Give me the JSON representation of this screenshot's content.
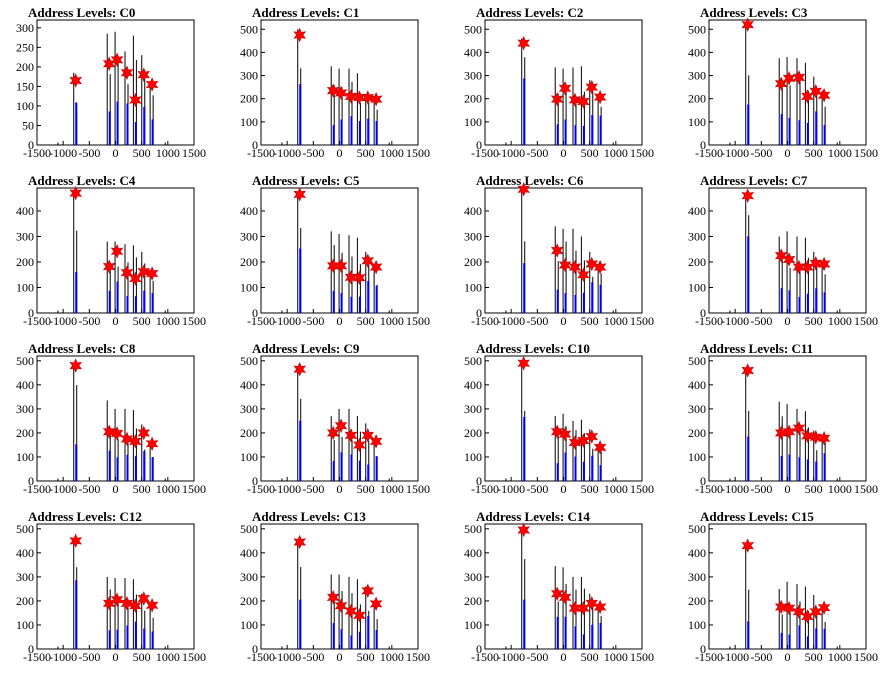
{
  "page": {
    "background": "#ffffff",
    "colors": {
      "axis": "#000000",
      "histogram": "#000000",
      "peak_bars": "#0000ff",
      "marker": "#ff0000",
      "marker_edge": "#cc0000"
    }
  },
  "chart_data": [
    {
      "type": "bar",
      "title": "Address Levels: C0",
      "xlim": [
        -1500,
        1500
      ],
      "ylim": [
        0,
        320
      ],
      "yticks": [
        0,
        50,
        100,
        150,
        200,
        250,
        300
      ],
      "xticks": [
        -1500,
        -1000,
        -500,
        0,
        500,
        1000,
        1500
      ],
      "peaks": [
        {
          "x": -760,
          "y": 165,
          "h": 185
        },
        {
          "x": -120,
          "y": 208,
          "h": 285
        },
        {
          "x": 30,
          "y": 218,
          "h": 290
        },
        {
          "x": 220,
          "y": 185,
          "h": 240
        },
        {
          "x": 380,
          "y": 115,
          "h": 280
        },
        {
          "x": 540,
          "y": 180,
          "h": 230
        },
        {
          "x": 700,
          "y": 155,
          "h": 160
        }
      ]
    },
    {
      "type": "bar",
      "title": "Address Levels: C1",
      "xlim": [
        -1500,
        1500
      ],
      "ylim": [
        0,
        540
      ],
      "yticks": [
        0,
        100,
        200,
        300,
        400,
        500
      ],
      "xticks": [
        -1500,
        -1000,
        -500,
        0,
        500,
        1000,
        1500
      ],
      "peaks": [
        {
          "x": -760,
          "y": 475,
          "h": 500
        },
        {
          "x": -120,
          "y": 235,
          "h": 340
        },
        {
          "x": 30,
          "y": 225,
          "h": 330
        },
        {
          "x": 220,
          "y": 210,
          "h": 330
        },
        {
          "x": 380,
          "y": 205,
          "h": 310
        },
        {
          "x": 540,
          "y": 205,
          "h": 220
        },
        {
          "x": 700,
          "y": 198,
          "h": 205
        }
      ]
    },
    {
      "type": "bar",
      "title": "Address Levels: C2",
      "xlim": [
        -1500,
        1500
      ],
      "ylim": [
        0,
        540
      ],
      "yticks": [
        0,
        100,
        200,
        300,
        400,
        500
      ],
      "xticks": [
        -1500,
        -1000,
        -500,
        0,
        500,
        1000,
        1500
      ],
      "peaks": [
        {
          "x": -760,
          "y": 440,
          "h": 460
        },
        {
          "x": -120,
          "y": 198,
          "h": 335
        },
        {
          "x": 30,
          "y": 245,
          "h": 330
        },
        {
          "x": 220,
          "y": 195,
          "h": 335
        },
        {
          "x": 380,
          "y": 188,
          "h": 340
        },
        {
          "x": 540,
          "y": 250,
          "h": 280
        },
        {
          "x": 700,
          "y": 207,
          "h": 215
        }
      ]
    },
    {
      "type": "bar",
      "title": "Address Levels: C3",
      "xlim": [
        -1500,
        1500
      ],
      "ylim": [
        0,
        540
      ],
      "yticks": [
        0,
        100,
        200,
        300,
        400,
        500
      ],
      "xticks": [
        -1500,
        -1000,
        -500,
        0,
        500,
        1000,
        1500
      ],
      "peaks": [
        {
          "x": -760,
          "y": 520,
          "h": 530
        },
        {
          "x": -120,
          "y": 265,
          "h": 375
        },
        {
          "x": 30,
          "y": 288,
          "h": 380
        },
        {
          "x": 220,
          "y": 292,
          "h": 375
        },
        {
          "x": 380,
          "y": 210,
          "h": 355
        },
        {
          "x": 540,
          "y": 232,
          "h": 295
        },
        {
          "x": 700,
          "y": 215,
          "h": 235
        }
      ]
    },
    {
      "type": "bar",
      "title": "Address Levels: C4",
      "xlim": [
        -1500,
        1500
      ],
      "ylim": [
        0,
        490
      ],
      "yticks": [
        0,
        100,
        200,
        300,
        400
      ],
      "xticks": [
        -1500,
        -1000,
        -500,
        0,
        500,
        1000,
        1500
      ],
      "peaks": [
        {
          "x": -760,
          "y": 470,
          "h": 480
        },
        {
          "x": -120,
          "y": 182,
          "h": 280
        },
        {
          "x": 30,
          "y": 242,
          "h": 280
        },
        {
          "x": 220,
          "y": 158,
          "h": 270
        },
        {
          "x": 380,
          "y": 135,
          "h": 265
        },
        {
          "x": 540,
          "y": 162,
          "h": 240
        },
        {
          "x": 700,
          "y": 155,
          "h": 170
        }
      ]
    },
    {
      "type": "bar",
      "title": "Address Levels: C5",
      "xlim": [
        -1500,
        1500
      ],
      "ylim": [
        0,
        490
      ],
      "yticks": [
        0,
        100,
        200,
        300,
        400
      ],
      "xticks": [
        -1500,
        -1000,
        -500,
        0,
        500,
        1000,
        1500
      ],
      "peaks": [
        {
          "x": -760,
          "y": 465,
          "h": 475
        },
        {
          "x": -120,
          "y": 185,
          "h": 320
        },
        {
          "x": 30,
          "y": 185,
          "h": 310
        },
        {
          "x": 220,
          "y": 140,
          "h": 305
        },
        {
          "x": 380,
          "y": 138,
          "h": 295
        },
        {
          "x": 540,
          "y": 205,
          "h": 240
        },
        {
          "x": 700,
          "y": 180,
          "h": 190
        }
      ]
    },
    {
      "type": "bar",
      "title": "Address Levels: C6",
      "xlim": [
        -1500,
        1500
      ],
      "ylim": [
        0,
        490
      ],
      "yticks": [
        0,
        100,
        200,
        300,
        400
      ],
      "xticks": [
        -1500,
        -1000,
        -500,
        0,
        500,
        1000,
        1500
      ],
      "peaks": [
        {
          "x": -760,
          "y": 485,
          "h": 490
        },
        {
          "x": -120,
          "y": 245,
          "h": 340
        },
        {
          "x": 30,
          "y": 188,
          "h": 330
        },
        {
          "x": 220,
          "y": 180,
          "h": 330
        },
        {
          "x": 380,
          "y": 150,
          "h": 300
        },
        {
          "x": 540,
          "y": 192,
          "h": 240
        },
        {
          "x": 700,
          "y": 180,
          "h": 190
        }
      ]
    },
    {
      "type": "bar",
      "title": "Address Levels: C7",
      "xlim": [
        -1500,
        1500
      ],
      "ylim": [
        0,
        490
      ],
      "yticks": [
        0,
        100,
        200,
        300,
        400
      ],
      "xticks": [
        -1500,
        -1000,
        -500,
        0,
        500,
        1000,
        1500
      ],
      "peaks": [
        {
          "x": -760,
          "y": 460,
          "h": 470
        },
        {
          "x": -120,
          "y": 225,
          "h": 300
        },
        {
          "x": 30,
          "y": 210,
          "h": 320
        },
        {
          "x": 220,
          "y": 180,
          "h": 300
        },
        {
          "x": 380,
          "y": 180,
          "h": 295
        },
        {
          "x": 540,
          "y": 195,
          "h": 240
        },
        {
          "x": 700,
          "y": 192,
          "h": 200
        }
      ]
    },
    {
      "type": "bar",
      "title": "Address Levels: C8",
      "xlim": [
        -1500,
        1500
      ],
      "ylim": [
        0,
        520
      ],
      "yticks": [
        0,
        100,
        200,
        300,
        400,
        500
      ],
      "xticks": [
        -1500,
        -1000,
        -500,
        0,
        500,
        1000,
        1500
      ],
      "peaks": [
        {
          "x": -760,
          "y": 480,
          "h": 490
        },
        {
          "x": -120,
          "y": 205,
          "h": 335
        },
        {
          "x": 30,
          "y": 198,
          "h": 300
        },
        {
          "x": 220,
          "y": 175,
          "h": 300
        },
        {
          "x": 380,
          "y": 165,
          "h": 295
        },
        {
          "x": 540,
          "y": 200,
          "h": 235
        },
        {
          "x": 700,
          "y": 155,
          "h": 165
        }
      ]
    },
    {
      "type": "bar",
      "title": "Address Levels: C9",
      "xlim": [
        -1500,
        1500
      ],
      "ylim": [
        0,
        520
      ],
      "yticks": [
        0,
        100,
        200,
        300,
        400,
        500
      ],
      "xticks": [
        -1500,
        -1000,
        -500,
        0,
        500,
        1000,
        1500
      ],
      "peaks": [
        {
          "x": -760,
          "y": 465,
          "h": 475
        },
        {
          "x": -120,
          "y": 200,
          "h": 270
        },
        {
          "x": 30,
          "y": 230,
          "h": 300
        },
        {
          "x": 220,
          "y": 190,
          "h": 300
        },
        {
          "x": 380,
          "y": 150,
          "h": 270
        },
        {
          "x": 540,
          "y": 190,
          "h": 240
        },
        {
          "x": 700,
          "y": 165,
          "h": 175
        }
      ]
    },
    {
      "type": "bar",
      "title": "Address Levels: C10",
      "xlim": [
        -1500,
        1500
      ],
      "ylim": [
        0,
        520
      ],
      "yticks": [
        0,
        100,
        200,
        300,
        400,
        500
      ],
      "xticks": [
        -1500,
        -1000,
        -500,
        0,
        500,
        1000,
        1500
      ],
      "peaks": [
        {
          "x": -760,
          "y": 490,
          "h": 495
        },
        {
          "x": -120,
          "y": 205,
          "h": 270
        },
        {
          "x": 30,
          "y": 195,
          "h": 280
        },
        {
          "x": 220,
          "y": 160,
          "h": 250
        },
        {
          "x": 380,
          "y": 168,
          "h": 255
        },
        {
          "x": 540,
          "y": 185,
          "h": 215
        },
        {
          "x": 700,
          "y": 140,
          "h": 150
        }
      ]
    },
    {
      "type": "bar",
      "title": "Address Levels: C11",
      "xlim": [
        -1500,
        1500
      ],
      "ylim": [
        0,
        520
      ],
      "yticks": [
        0,
        100,
        200,
        300,
        400,
        500
      ],
      "xticks": [
        -1500,
        -1000,
        -500,
        0,
        500,
        1000,
        1500
      ],
      "peaks": [
        {
          "x": -760,
          "y": 460,
          "h": 470
        },
        {
          "x": -120,
          "y": 200,
          "h": 330
        },
        {
          "x": 30,
          "y": 205,
          "h": 320
        },
        {
          "x": 220,
          "y": 220,
          "h": 300
        },
        {
          "x": 380,
          "y": 188,
          "h": 290
        },
        {
          "x": 540,
          "y": 182,
          "h": 210
        },
        {
          "x": 700,
          "y": 178,
          "h": 190
        }
      ]
    },
    {
      "type": "bar",
      "title": "Address Levels: C12",
      "xlim": [
        -1500,
        1500
      ],
      "ylim": [
        0,
        520
      ],
      "yticks": [
        0,
        100,
        200,
        300,
        400,
        500
      ],
      "xticks": [
        -1500,
        -1000,
        -500,
        0,
        500,
        1000,
        1500
      ],
      "peaks": [
        {
          "x": -760,
          "y": 450,
          "h": 460
        },
        {
          "x": -120,
          "y": 190,
          "h": 300
        },
        {
          "x": 30,
          "y": 205,
          "h": 295
        },
        {
          "x": 220,
          "y": 190,
          "h": 295
        },
        {
          "x": 380,
          "y": 180,
          "h": 290
        },
        {
          "x": 540,
          "y": 210,
          "h": 230
        },
        {
          "x": 700,
          "y": 182,
          "h": 190
        }
      ]
    },
    {
      "type": "bar",
      "title": "Address Levels: C13",
      "xlim": [
        -1500,
        1500
      ],
      "ylim": [
        0,
        520
      ],
      "yticks": [
        0,
        100,
        200,
        300,
        400,
        500
      ],
      "xticks": [
        -1500,
        -1000,
        -500,
        0,
        500,
        1000,
        1500
      ],
      "peaks": [
        {
          "x": -760,
          "y": 445,
          "h": 455
        },
        {
          "x": -120,
          "y": 215,
          "h": 310
        },
        {
          "x": 30,
          "y": 180,
          "h": 310
        },
        {
          "x": 220,
          "y": 158,
          "h": 300
        },
        {
          "x": 380,
          "y": 140,
          "h": 290
        },
        {
          "x": 540,
          "y": 242,
          "h": 260
        },
        {
          "x": 700,
          "y": 188,
          "h": 195
        }
      ]
    },
    {
      "type": "bar",
      "title": "Address Levels: C14",
      "xlim": [
        -1500,
        1500
      ],
      "ylim": [
        0,
        520
      ],
      "yticks": [
        0,
        100,
        200,
        300,
        400,
        500
      ],
      "xticks": [
        -1500,
        -1000,
        -500,
        0,
        500,
        1000,
        1500
      ],
      "peaks": [
        {
          "x": -760,
          "y": 495,
          "h": 500
        },
        {
          "x": -120,
          "y": 230,
          "h": 345
        },
        {
          "x": 30,
          "y": 215,
          "h": 340
        },
        {
          "x": 220,
          "y": 170,
          "h": 300
        },
        {
          "x": 380,
          "y": 170,
          "h": 300
        },
        {
          "x": 540,
          "y": 190,
          "h": 230
        },
        {
          "x": 700,
          "y": 175,
          "h": 180
        }
      ]
    },
    {
      "type": "bar",
      "title": "Address Levels: C15",
      "xlim": [
        -1500,
        1500
      ],
      "ylim": [
        0,
        520
      ],
      "yticks": [
        0,
        100,
        200,
        300,
        400,
        500
      ],
      "xticks": [
        -1500,
        -1000,
        -500,
        0,
        500,
        1000,
        1500
      ],
      "peaks": [
        {
          "x": -760,
          "y": 430,
          "h": 440
        },
        {
          "x": -120,
          "y": 175,
          "h": 250
        },
        {
          "x": 30,
          "y": 170,
          "h": 280
        },
        {
          "x": 220,
          "y": 155,
          "h": 270
        },
        {
          "x": 380,
          "y": 135,
          "h": 260
        },
        {
          "x": 540,
          "y": 155,
          "h": 225
        },
        {
          "x": 700,
          "y": 172,
          "h": 180
        }
      ]
    }
  ]
}
